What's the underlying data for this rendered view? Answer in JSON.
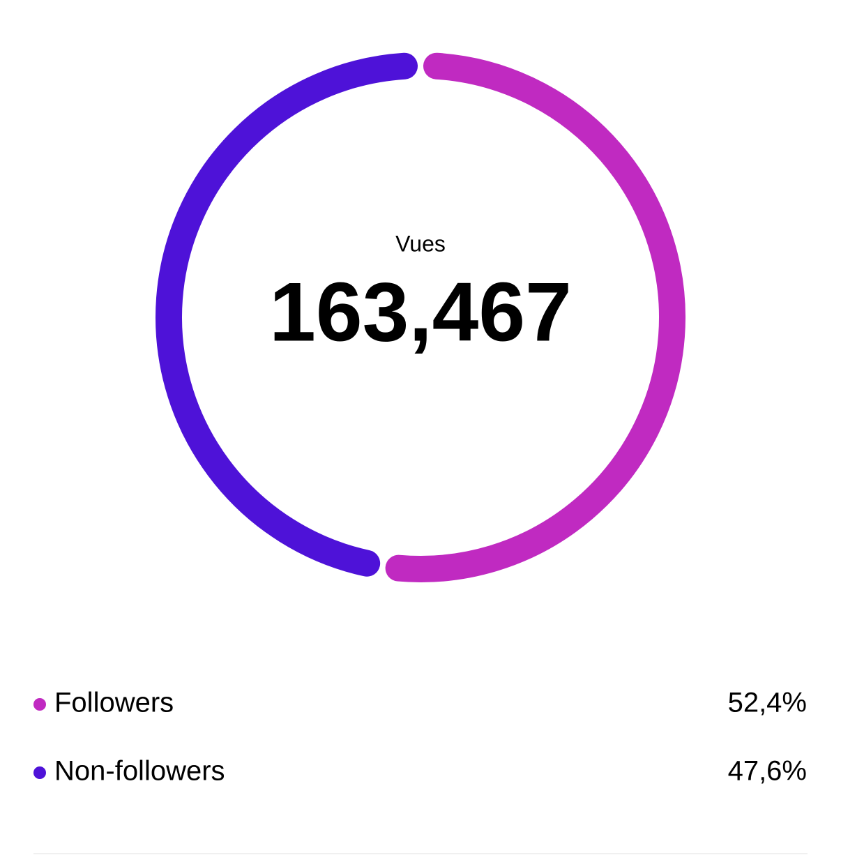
{
  "chart_data": {
    "type": "donut",
    "center_label": "Vues",
    "center_value": "163,467",
    "categories": [
      "Followers",
      "Non-followers"
    ],
    "values": [
      52.4,
      47.6
    ],
    "value_labels": [
      "52,4%",
      "47,6%"
    ],
    "colors": [
      "#c02ac1",
      "#4e12d8"
    ]
  }
}
